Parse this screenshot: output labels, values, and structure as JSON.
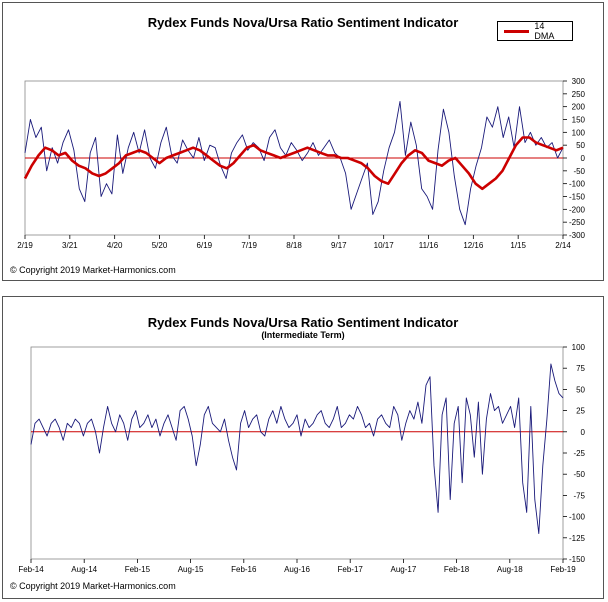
{
  "charts": {
    "chart1": {
      "title": "Rydex Funds Nova/Ursa Ratio Sentiment Indicator",
      "legend_label": "14 DMA",
      "copyright": "© Copyright 2019 Market-Harmonics.com"
    },
    "chart2": {
      "title": "Rydex Funds Nova/Ursa Ratio Sentiment Indicator",
      "subtitle": "(Intermediate Term)",
      "copyright": "© Copyright 2019 Market-Harmonics.com"
    }
  },
  "colors": {
    "ratio_line": "#1a1a7a",
    "dma_line": "#cc0000",
    "zero_line": "#cc0000"
  },
  "chart_data": [
    {
      "type": "line",
      "title": "Rydex Funds Nova/Ursa Ratio Sentiment Indicator",
      "x_ticks": [
        "2/19",
        "3/21",
        "4/20",
        "5/20",
        "6/19",
        "7/19",
        "8/18",
        "9/17",
        "10/17",
        "11/16",
        "12/16",
        "1/15",
        "2/14"
      ],
      "y_ticks": [
        300,
        250,
        200,
        150,
        100,
        50,
        0,
        -50,
        -100,
        -150,
        -200,
        -250,
        -300
      ],
      "ylim": [
        -300,
        300
      ],
      "grid": false,
      "legend_position": "top-right",
      "series": [
        {
          "name": "",
          "color": "#1a1a7a",
          "values": [
            20,
            150,
            80,
            120,
            -50,
            40,
            -20,
            60,
            110,
            30,
            -120,
            -170,
            20,
            80,
            -150,
            -100,
            -140,
            90,
            -60,
            40,
            100,
            20,
            110,
            0,
            -40,
            60,
            120,
            10,
            -20,
            70,
            30,
            0,
            80,
            -10,
            50,
            40,
            -30,
            -80,
            20,
            60,
            90,
            30,
            60,
            40,
            -10,
            80,
            110,
            40,
            10,
            60,
            30,
            -10,
            20,
            60,
            10,
            40,
            70,
            20,
            0,
            -60,
            -200,
            -140,
            -80,
            -20,
            -220,
            -170,
            -50,
            40,
            100,
            220,
            10,
            140,
            50,
            -120,
            -150,
            -200,
            30,
            190,
            100,
            -70,
            -200,
            -260,
            -120,
            -30,
            40,
            160,
            120,
            200,
            80,
            160,
            40,
            200,
            60,
            100,
            50,
            80,
            40,
            60,
            0,
            40
          ],
          "x_range": [
            "2/19",
            "2/14"
          ]
        },
        {
          "name": "14 DMA",
          "color": "#cc0000",
          "values": [
            -80,
            -30,
            10,
            40,
            30,
            10,
            20,
            -10,
            -30,
            -40,
            -60,
            -70,
            -60,
            -40,
            -20,
            10,
            20,
            30,
            20,
            0,
            -20,
            0,
            10,
            20,
            30,
            40,
            30,
            10,
            -10,
            -30,
            -40,
            -20,
            10,
            40,
            50,
            30,
            20,
            10,
            0,
            10,
            20,
            30,
            40,
            30,
            20,
            10,
            10,
            0,
            0,
            -10,
            -20,
            -40,
            -70,
            -90,
            -100,
            -60,
            -20,
            10,
            30,
            20,
            -10,
            -20,
            -30,
            -10,
            0,
            -30,
            -60,
            -100,
            -120,
            -100,
            -80,
            -50,
            0,
            50,
            80,
            80,
            60,
            50,
            40,
            30,
            40
          ],
          "x_range": [
            "2/19",
            "2/14"
          ]
        }
      ]
    },
    {
      "type": "line",
      "title": "Rydex Funds Nova/Ursa Ratio Sentiment Indicator",
      "subtitle": "(Intermediate Term)",
      "x_ticks": [
        "Feb-14",
        "Aug-14",
        "Feb-15",
        "Aug-15",
        "Feb-16",
        "Aug-16",
        "Feb-17",
        "Aug-17",
        "Feb-18",
        "Aug-18",
        "Feb-19"
      ],
      "y_ticks": [
        100,
        75,
        50,
        25,
        0,
        -25,
        -50,
        -75,
        -100,
        -125,
        -150
      ],
      "ylim": [
        -150,
        100
      ],
      "grid": false,
      "series": [
        {
          "name": "",
          "color": "#1a1a7a",
          "values": [
            -15,
            10,
            15,
            5,
            -5,
            10,
            15,
            5,
            -10,
            10,
            5,
            15,
            10,
            -5,
            10,
            15,
            0,
            -25,
            5,
            30,
            10,
            0,
            20,
            10,
            -10,
            15,
            25,
            5,
            10,
            20,
            5,
            15,
            -5,
            10,
            20,
            5,
            -10,
            25,
            30,
            15,
            -5,
            -40,
            -15,
            20,
            30,
            10,
            5,
            0,
            15,
            -10,
            -30,
            -45,
            10,
            25,
            5,
            15,
            20,
            0,
            -5,
            15,
            25,
            10,
            30,
            15,
            5,
            10,
            20,
            -5,
            15,
            5,
            10,
            20,
            25,
            10,
            5,
            15,
            30,
            5,
            10,
            20,
            15,
            30,
            20,
            5,
            10,
            -5,
            15,
            20,
            10,
            5,
            30,
            20,
            -10,
            10,
            25,
            15,
            35,
            10,
            55,
            65,
            -40,
            -95,
            20,
            40,
            -80,
            10,
            30,
            -60,
            40,
            20,
            -30,
            35,
            -50,
            15,
            45,
            25,
            30,
            10,
            20,
            30,
            5,
            40,
            -60,
            -95,
            30,
            -80,
            -120,
            -40,
            15,
            80,
            60,
            45,
            40
          ]
        }
      ]
    }
  ]
}
